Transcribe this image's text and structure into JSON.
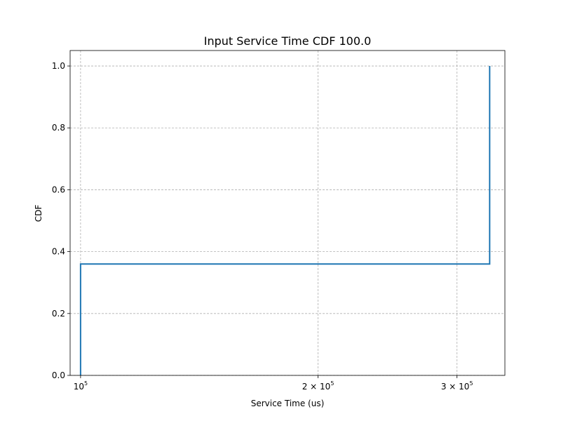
{
  "chart_data": {
    "type": "line",
    "title": "Input Service Time CDF 100.0",
    "xlabel": "Service Time (us)",
    "ylabel": "CDF",
    "x_scale": "log",
    "xlim": [
      97000,
      345000
    ],
    "ylim": [
      0.0,
      1.05
    ],
    "grid": true,
    "line_color": "#1f77b4",
    "series": [
      {
        "x": [
          100000,
          100000,
          100000,
          330000,
          330000,
          330000
        ],
        "y": [
          0.0,
          0.0,
          0.36,
          0.36,
          0.36,
          1.0
        ],
        "drawstyle": "steps-post"
      }
    ],
    "x_ticks": [
      {
        "value": 100000,
        "base": "10",
        "exp": "5",
        "coef": ""
      },
      {
        "value": 200000,
        "base": "10",
        "exp": "5",
        "coef": "2 × "
      },
      {
        "value": 300000,
        "base": "10",
        "exp": "5",
        "coef": "3 × "
      }
    ],
    "y_ticks": [
      {
        "value": 0.0,
        "label": "0.0"
      },
      {
        "value": 0.2,
        "label": "0.2"
      },
      {
        "value": 0.4,
        "label": "0.4"
      },
      {
        "value": 0.6,
        "label": "0.6"
      },
      {
        "value": 0.8,
        "label": "0.8"
      },
      {
        "value": 1.0,
        "label": "1.0"
      }
    ]
  }
}
